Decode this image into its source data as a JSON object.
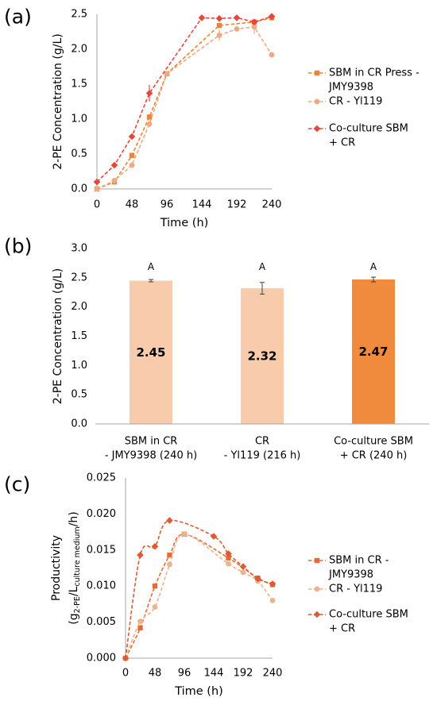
{
  "chart_data": [
    {
      "panel_label": "(a)",
      "type": "line",
      "xlabel": "Time (h)",
      "ylabel": "2-PE Concentration (g/L)",
      "xlim": [
        0,
        240
      ],
      "ylim": [
        0,
        2.5
      ],
      "xticks": [
        "0",
        "48",
        "96",
        "144",
        "192",
        "240"
      ],
      "yticks": [
        "0.0",
        "0.5",
        "1.0",
        "1.5",
        "2.0",
        "2.5"
      ],
      "grid": false,
      "legend_position": "right",
      "line_style": "dashed",
      "smooth": false,
      "series": [
        {
          "name_lines": [
            "SBM in CR Press -",
            "JMY9398"
          ],
          "marker": "square",
          "color": "#F08233",
          "x": [
            0,
            24,
            48,
            72,
            96,
            168,
            216,
            240
          ],
          "y": [
            0.0,
            0.1,
            0.48,
            1.03,
            1.65,
            2.34,
            2.39,
            2.45
          ],
          "err": [
            0,
            0,
            0,
            0,
            0,
            0,
            0.03,
            0.02
          ]
        },
        {
          "name_lines": [
            "CR - Yl119"
          ],
          "marker": "circle",
          "color": "#EDA982",
          "x": [
            0,
            24,
            48,
            72,
            96,
            168,
            192,
            216,
            240
          ],
          "y": [
            0.0,
            0.12,
            0.34,
            0.93,
            1.65,
            2.2,
            2.29,
            2.32,
            1.92
          ],
          "err": [
            0,
            0,
            0,
            0.04,
            0,
            0.08,
            0,
            0.1,
            0
          ]
        },
        {
          "name_lines": [
            "Co-culture SBM",
            "+ CR"
          ],
          "marker": "diamond",
          "color": "#E8453C",
          "x": [
            0,
            24,
            48,
            72,
            144,
            168,
            192,
            216,
            240
          ],
          "y": [
            0.1,
            0.34,
            0.75,
            1.37,
            2.45,
            2.44,
            2.45,
            2.39,
            2.47
          ],
          "err": [
            0,
            0,
            0,
            0.12,
            0,
            0,
            0,
            0.03,
            0.04
          ]
        }
      ]
    },
    {
      "panel_label": "(b)",
      "type": "bar",
      "ylabel": "2-PE Concentration (g/L)",
      "ylim": [
        0,
        3.0
      ],
      "yticks": [
        "0.0",
        "0.5",
        "1.0",
        "1.5",
        "2.0",
        "2.5",
        "3.0"
      ],
      "grid": false,
      "categories": [
        [
          "SBM in CR",
          "- JMY9398 (240 h)"
        ],
        [
          "CR",
          "- Yl119 (216 h)"
        ],
        [
          "Co-culture SBM",
          "+ CR (240 h)"
        ]
      ],
      "values": [
        2.45,
        2.32,
        2.47
      ],
      "errors": [
        0.02,
        0.1,
        0.04
      ],
      "significance": [
        "A",
        "A",
        "A"
      ],
      "colors": [
        "#F8CBAD",
        "#F8CBAD",
        "#F08A3C"
      ]
    },
    {
      "panel_label": "(c)",
      "type": "line",
      "xlabel": "Time (h)",
      "ylabel": {
        "line1": "Productivity",
        "line2_parts": [
          {
            "text": "(g"
          },
          {
            "text": "2-PE",
            "sub": true
          },
          {
            "text": "/L"
          },
          {
            "text": "culture medium",
            "sub": true
          },
          {
            "text": "/h)"
          }
        ]
      },
      "xlim": [
        0,
        240
      ],
      "ylim": [
        0,
        0.025
      ],
      "xticks": [
        "0",
        "48",
        "96",
        "144",
        "192",
        "240"
      ],
      "yticks": [
        "0.000",
        "0.005",
        "0.010",
        "0.015",
        "0.020",
        "0.025"
      ],
      "grid": false,
      "legend_position": "right",
      "line_style": "dashed",
      "smooth": true,
      "series": [
        {
          "name_lines": [
            "SBM in CR -",
            "JMY9398"
          ],
          "marker": "square",
          "color": "#EA6A34",
          "x": [
            0,
            24,
            48,
            72,
            96,
            168,
            216,
            240
          ],
          "y": [
            0,
            0.0042,
            0.01,
            0.0143,
            0.0172,
            0.0139,
            0.0111,
            0.0102
          ]
        },
        {
          "name_lines": [
            "CR - Yl119"
          ],
          "marker": "circle",
          "color": "#F0B28C",
          "x": [
            0,
            24,
            48,
            72,
            96,
            168,
            192,
            216,
            240
          ],
          "y": [
            0,
            0.0051,
            0.0071,
            0.013,
            0.0172,
            0.0131,
            0.0119,
            0.0107,
            0.008
          ]
        },
        {
          "name_lines": [
            "Co-culture SBM",
            "+ CR"
          ],
          "marker": "diamond",
          "color": "#DE5A32",
          "x": [
            0,
            24,
            48,
            72,
            144,
            168,
            192,
            216,
            240
          ],
          "y": [
            0,
            0.0143,
            0.0155,
            0.0191,
            0.0169,
            0.0145,
            0.0127,
            0.011,
            0.0103
          ]
        }
      ]
    }
  ]
}
